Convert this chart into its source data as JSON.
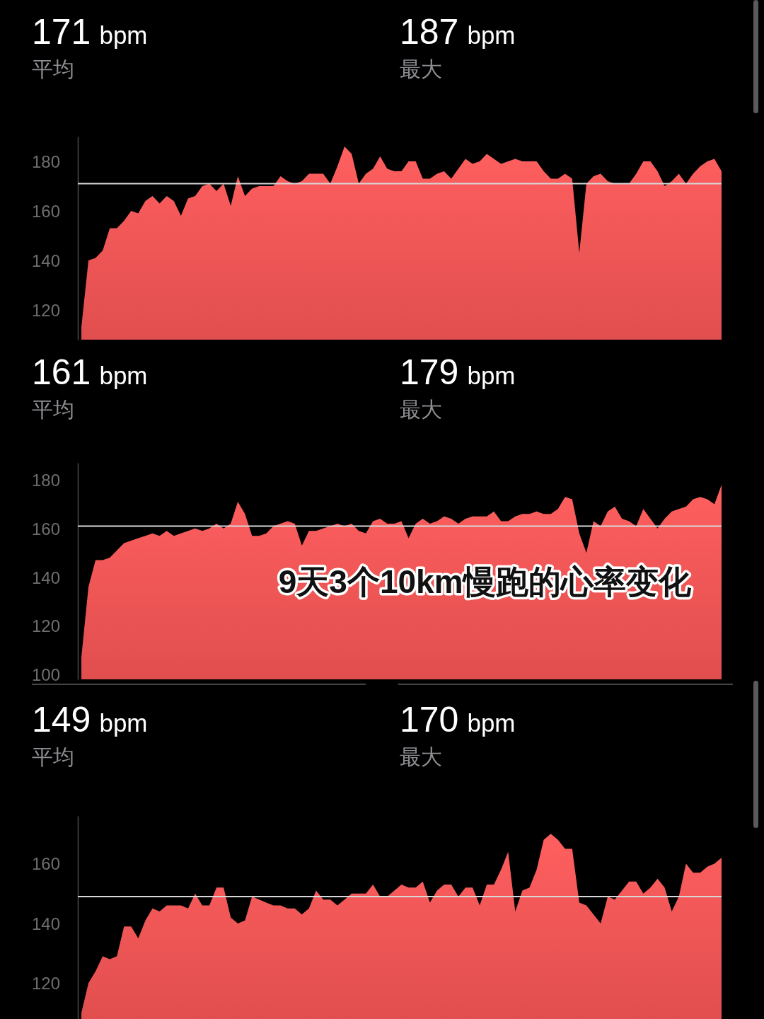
{
  "chart_data": [
    {
      "type": "area",
      "categories": [
        null,
        null,
        null,
        null,
        null,
        null,
        null,
        null,
        null,
        null,
        null,
        null,
        null,
        null,
        null,
        null,
        null,
        null,
        null,
        null,
        null,
        null,
        null,
        null,
        null,
        null,
        null,
        null,
        null,
        null,
        null,
        null,
        null,
        null,
        null,
        null,
        null,
        null,
        null,
        null,
        null,
        null,
        null,
        null,
        null,
        null,
        null,
        null,
        null,
        null,
        null,
        null,
        null,
        null,
        null,
        null,
        null,
        null,
        null,
        null,
        null,
        null,
        null,
        null,
        null,
        null,
        null,
        null,
        null,
        null,
        null,
        null,
        null,
        null,
        null,
        null,
        null,
        null,
        null,
        null,
        null,
        null,
        null,
        null,
        null,
        null,
        null,
        null,
        null,
        null,
        null
      ],
      "values": [
        113,
        140,
        141,
        144,
        153,
        153,
        156,
        160,
        159,
        164,
        166,
        163,
        166,
        164,
        158,
        165,
        166,
        170,
        171,
        168,
        171,
        162,
        174,
        166,
        169,
        170,
        170,
        170,
        174,
        172,
        171,
        172,
        175,
        175,
        175,
        171,
        178,
        186,
        183,
        171,
        175,
        177,
        182,
        177,
        176,
        176,
        180,
        180,
        173,
        173,
        175,
        176,
        173,
        177,
        181,
        179,
        180,
        183,
        181,
        179,
        180,
        181,
        180,
        180,
        180,
        176,
        173,
        173,
        175,
        173,
        143,
        171,
        174,
        175,
        172,
        171,
        171,
        171,
        175,
        180,
        180,
        176,
        170,
        172,
        175,
        171,
        175,
        178,
        180,
        181,
        176
      ],
      "color": "#f25454",
      "ylim": [
        108,
        190
      ],
      "yticks": [
        120,
        140,
        160,
        180
      ],
      "tick_labels": "y",
      "ref_lines": [
        {
          "axis": "y",
          "value": 171,
          "color": "#d8d8d8"
        }
      ],
      "annotations": [
        "171 bpm",
        "平均",
        "187 bpm",
        "最大"
      ]
    },
    {
      "type": "area",
      "categories": [
        null,
        null,
        null,
        null,
        null,
        null,
        null,
        null,
        null,
        null,
        null,
        null,
        null,
        null,
        null,
        null,
        null,
        null,
        null,
        null,
        null,
        null,
        null,
        null,
        null,
        null,
        null,
        null,
        null,
        null,
        null,
        null,
        null,
        null,
        null,
        null,
        null,
        null,
        null,
        null,
        null,
        null,
        null,
        null,
        null,
        null,
        null,
        null,
        null,
        null,
        null,
        null,
        null,
        null,
        null,
        null,
        null,
        null,
        null,
        null,
        null,
        null,
        null,
        null,
        null,
        null,
        null,
        null,
        null,
        null,
        null,
        null,
        null,
        null,
        null,
        null,
        null,
        null,
        null,
        null,
        null,
        null,
        null,
        null,
        null,
        null,
        null,
        null,
        null,
        null,
        null
      ],
      "values": [
        107,
        136,
        147,
        147,
        148,
        151,
        154,
        155,
        156,
        157,
        158,
        157,
        159,
        157,
        158,
        159,
        160,
        159,
        160,
        162,
        160,
        162,
        171,
        166,
        157,
        157,
        158,
        161,
        162,
        163,
        162,
        153,
        159,
        159,
        160,
        161,
        162,
        161,
        162,
        159,
        158,
        163,
        164,
        162,
        162,
        163,
        156,
        162,
        164,
        162,
        163,
        165,
        164,
        162,
        164,
        165,
        165,
        165,
        167,
        163,
        163,
        165,
        166,
        166,
        167,
        166,
        166,
        168,
        173,
        172,
        158,
        150,
        163,
        161,
        167,
        169,
        164,
        163,
        161,
        168,
        164,
        160,
        164,
        167,
        168,
        169,
        172,
        173,
        172,
        170,
        178
      ],
      "color": "#f25454",
      "ylim": [
        98,
        187
      ],
      "yticks": [
        100,
        120,
        140,
        160,
        180
      ],
      "tick_labels": "y",
      "ref_lines": [
        {
          "axis": "y",
          "value": 161,
          "color": "#d8d8d8"
        }
      ],
      "annotations": [
        "161 bpm",
        "平均",
        "179 bpm",
        "最大",
        "9天3个10km慢跑的心率变化"
      ]
    },
    {
      "type": "area",
      "categories": [
        null,
        null,
        null,
        null,
        null,
        null,
        null,
        null,
        null,
        null,
        null,
        null,
        null,
        null,
        null,
        null,
        null,
        null,
        null,
        null,
        null,
        null,
        null,
        null,
        null,
        null,
        null,
        null,
        null,
        null,
        null,
        null,
        null,
        null,
        null,
        null,
        null,
        null,
        null,
        null,
        null,
        null,
        null,
        null,
        null,
        null,
        null,
        null,
        null,
        null,
        null,
        null,
        null,
        null,
        null,
        null,
        null,
        null,
        null,
        null,
        null,
        null,
        null,
        null,
        null,
        null,
        null,
        null,
        null,
        null,
        null,
        null,
        null,
        null,
        null,
        null,
        null,
        null,
        null,
        null,
        null,
        null,
        null,
        null,
        null,
        null,
        null,
        null,
        null,
        null,
        null
      ],
      "values": [
        110,
        120,
        124,
        129,
        128,
        129,
        139,
        139,
        135,
        141,
        145,
        144,
        146,
        146,
        146,
        145,
        150,
        146,
        146,
        152,
        152,
        142,
        140,
        141,
        149,
        148,
        147,
        146,
        146,
        145,
        145,
        143,
        145,
        151,
        148,
        148,
        146,
        148,
        150,
        150,
        150,
        153,
        149,
        149,
        151,
        153,
        152,
        152,
        154,
        147,
        151,
        153,
        153,
        149,
        152,
        152,
        146,
        153,
        153,
        158,
        164,
        144,
        151,
        152,
        158,
        168,
        170,
        168,
        165,
        165,
        147,
        146,
        143,
        140,
        149,
        148,
        151,
        154,
        154,
        150,
        152,
        155,
        152,
        144,
        149,
        160,
        157,
        157,
        159,
        160,
        162
      ],
      "color": "#f25454",
      "ylim": [
        108,
        176
      ],
      "yticks": [
        120,
        140,
        160
      ],
      "tick_labels": "y",
      "ref_lines": [
        {
          "axis": "y",
          "value": 149,
          "color": "#d8d8d8"
        }
      ],
      "annotations": [
        "149 bpm",
        "平均",
        "170 bpm",
        "最大"
      ]
    }
  ]
}
